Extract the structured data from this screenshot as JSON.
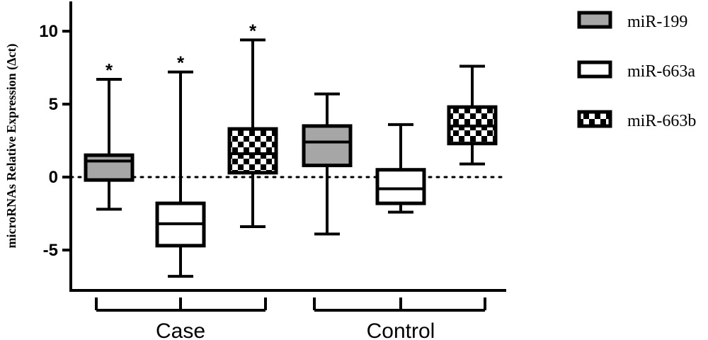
{
  "chart_data": {
    "type": "box",
    "ylabel": "microRNAs Relative Expression (Δct)",
    "ylim": [
      -8,
      12
    ],
    "yticks": [
      -5,
      0,
      5,
      10
    ],
    "reference_line_y": 0,
    "groups": [
      "Case",
      "Control"
    ],
    "series": [
      {
        "name": "miR-199",
        "pattern": "gray-fill",
        "fill": "#a6a6a6"
      },
      {
        "name": "miR-663a",
        "pattern": "white-fill",
        "fill": "#ffffff"
      },
      {
        "name": "miR-663b",
        "pattern": "checkerboard",
        "fill": "#000000"
      }
    ],
    "boxes": [
      {
        "group": "Case",
        "series": "miR-199",
        "min": -2.2,
        "q1": -0.2,
        "median": 1.1,
        "q3": 1.5,
        "max": 6.7,
        "sig": "*"
      },
      {
        "group": "Case",
        "series": "miR-663a",
        "min": -6.8,
        "q1": -4.7,
        "median": -3.2,
        "q3": -1.8,
        "max": 7.2,
        "sig": "*"
      },
      {
        "group": "Case",
        "series": "miR-663b",
        "min": -3.4,
        "q1": 0.3,
        "median": 1.6,
        "q3": 3.3,
        "max": 9.4,
        "sig": "*"
      },
      {
        "group": "Control",
        "series": "miR-199",
        "min": -3.9,
        "q1": 0.8,
        "median": 2.4,
        "q3": 3.5,
        "max": 5.7,
        "sig": ""
      },
      {
        "group": "Control",
        "series": "miR-663a",
        "min": -2.4,
        "q1": -1.8,
        "median": -0.8,
        "q3": 0.5,
        "max": 3.6,
        "sig": ""
      },
      {
        "group": "Control",
        "series": "miR-663b",
        "min": 0.9,
        "q1": 2.3,
        "median": 3.5,
        "q3": 4.8,
        "max": 7.6,
        "sig": ""
      }
    ],
    "legend_position": "top-right"
  }
}
